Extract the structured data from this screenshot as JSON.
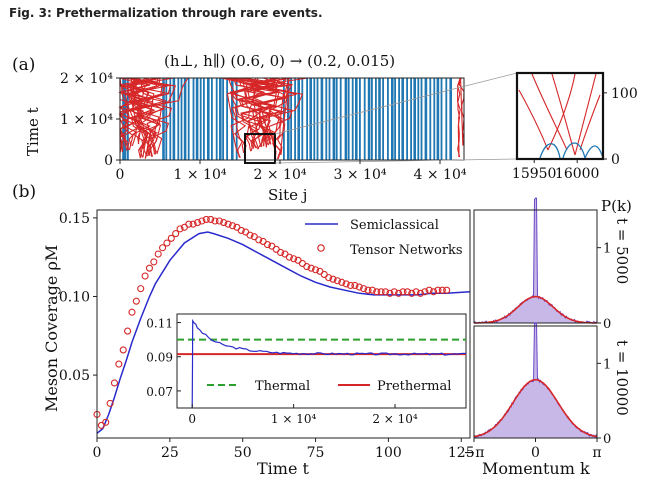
{
  "caption": "Fig. 3: Prethermalization through rare events.",
  "colors": {
    "blue": "#1f77b4",
    "red": "#d62728",
    "line_blue": "#2a2acc",
    "green": "#2ca02c",
    "dist_fill": "#c8b8e8",
    "dist_line": "#6a48c8"
  },
  "chart_data": [
    {
      "type": "heatmap",
      "panel": "(a)",
      "title": "(h⊥, h∥) (0.6, 0) → (0.2, 0.015)",
      "xlabel": "Site j",
      "ylabel": "Time t",
      "xlim": [
        0,
        43000
      ],
      "ylim": [
        0,
        20000
      ],
      "xticks": [
        "0",
        "1 × 10⁴",
        "2 × 10⁴",
        "3 × 10⁴",
        "4 × 10⁴"
      ],
      "yticks": [
        "0",
        "1 × 10⁴",
        "2 × 10⁴"
      ],
      "blue_bar_sites": [
        400,
        700,
        1000,
        5400,
        5800,
        6300,
        6700,
        7300,
        7700,
        8100,
        8600,
        9200,
        9600,
        10100,
        10500,
        11000,
        11500,
        12100,
        12500,
        12900,
        13400,
        14000,
        14600,
        20500,
        21000,
        21400,
        21900,
        22300,
        22800,
        23400,
        23800,
        24300,
        24700,
        25200,
        25800,
        26200,
        26700,
        27100,
        27600,
        28200,
        28600,
        29100,
        29500,
        30000,
        30600,
        31100,
        31500,
        32000,
        32400,
        32900,
        33500,
        34000,
        34400,
        34900,
        35300,
        35900,
        36400,
        36800,
        37300,
        37700,
        38200,
        38800,
        39300,
        39700,
        40200,
        40800,
        41300
      ],
      "red_event_regions": [
        [
          0,
          5200
        ],
        [
          14800,
          20300
        ],
        [
          42300,
          43000
        ]
      ],
      "inset": {
        "xlim": [
          15930,
          16030
        ],
        "ylim": [
          0,
          130
        ],
        "xticks": [
          "15950",
          "16000"
        ],
        "yticks": [
          "0",
          "100"
        ]
      }
    },
    {
      "type": "line",
      "panel": "(b)",
      "xlabel": "Time t",
      "ylabel": "Meson Coverage ρM",
      "xlim": [
        0,
        128
      ],
      "ylim": [
        0.01,
        0.155
      ],
      "xticks": [
        "0",
        "25",
        "50",
        "75",
        "100",
        "125"
      ],
      "yticks": [
        "0.05",
        "0.10",
        "0.15"
      ],
      "legend": [
        "Semiclassical",
        "Tensor Networks"
      ],
      "legend_position": "top-right",
      "series": [
        {
          "name": "Semiclassical",
          "style": "line",
          "x": [
            0,
            2,
            4,
            6,
            8,
            10,
            12,
            15,
            18,
            20,
            25,
            30,
            35,
            38,
            40,
            45,
            50,
            55,
            60,
            65,
            70,
            75,
            80,
            85,
            90,
            95,
            100,
            105,
            110,
            115,
            120,
            128
          ],
          "values": [
            0.013,
            0.016,
            0.025,
            0.036,
            0.048,
            0.059,
            0.071,
            0.086,
            0.1,
            0.108,
            0.123,
            0.134,
            0.14,
            0.141,
            0.14,
            0.137,
            0.133,
            0.128,
            0.123,
            0.118,
            0.113,
            0.109,
            0.106,
            0.104,
            0.102,
            0.101,
            0.101,
            0.101,
            0.101,
            0.102,
            0.102,
            0.103
          ]
        },
        {
          "name": "Tensor Networks",
          "style": "markers",
          "x": [
            0,
            1.5,
            3,
            4.5,
            6,
            7.5,
            9,
            10.5,
            12,
            13.5,
            15,
            16.5,
            18,
            19.5,
            21,
            22.5,
            24,
            25.5,
            27,
            28.5,
            30,
            31.5,
            33,
            34.5,
            36,
            37.5,
            39,
            40.5,
            42,
            43.5,
            45,
            46.5,
            48,
            49.5,
            51,
            52.5,
            54,
            55.5,
            57,
            58.5,
            60,
            61.5,
            63,
            64.5,
            66,
            67.5,
            69,
            70.5,
            72,
            73.5,
            75,
            76.5,
            78,
            79.5,
            81,
            82.5,
            84,
            85.5,
            87,
            88.5,
            90,
            91.5,
            93,
            94.5,
            96,
            97.5,
            99,
            100.5,
            102,
            103.5,
            105,
            106.5,
            108,
            109.5,
            111,
            112.5,
            114,
            115.5,
            117,
            118.5,
            120
          ],
          "values": [
            0.025,
            0.018,
            0.02,
            0.032,
            0.045,
            0.057,
            0.066,
            0.078,
            0.09,
            0.097,
            0.105,
            0.113,
            0.118,
            0.122,
            0.127,
            0.131,
            0.134,
            0.137,
            0.14,
            0.143,
            0.144,
            0.146,
            0.146,
            0.147,
            0.148,
            0.149,
            0.149,
            0.148,
            0.148,
            0.147,
            0.146,
            0.145,
            0.144,
            0.142,
            0.141,
            0.139,
            0.138,
            0.136,
            0.135,
            0.133,
            0.132,
            0.13,
            0.128,
            0.127,
            0.125,
            0.124,
            0.123,
            0.121,
            0.119,
            0.118,
            0.117,
            0.116,
            0.114,
            0.112,
            0.111,
            0.11,
            0.109,
            0.108,
            0.107,
            0.107,
            0.106,
            0.105,
            0.104,
            0.104,
            0.103,
            0.103,
            0.103,
            0.102,
            0.103,
            0.102,
            0.103,
            0.103,
            0.102,
            0.103,
            0.102,
            0.103,
            0.104,
            0.103,
            0.104,
            0.104,
            0.104
          ]
        }
      ],
      "inset": {
        "xlim": [
          -1500,
          27000
        ],
        "ylim": [
          0.06,
          0.115
        ],
        "xticks": [
          "0",
          "1 × 10⁴",
          "2 × 10⁴"
        ],
        "yticks": [
          "0.07",
          "0.09",
          "0.11"
        ],
        "legend": [
          "Thermal",
          "Prethermal"
        ],
        "thermal": 0.1,
        "prethermal": 0.0915,
        "curve_x": [
          0,
          50,
          200,
          500,
          1000,
          2000,
          3000,
          4000,
          5000,
          6000,
          7000,
          8000,
          9000,
          10000,
          12000,
          15000,
          18000,
          21000,
          24000,
          27000
        ],
        "curve_y": [
          0.06,
          0.111,
          0.11,
          0.107,
          0.104,
          0.0995,
          0.097,
          0.0955,
          0.0945,
          0.0935,
          0.093,
          0.0925,
          0.0922,
          0.092,
          0.0918,
          0.0917,
          0.0916,
          0.0916,
          0.0915,
          0.0915
        ]
      }
    },
    {
      "type": "area",
      "panel": "distributions",
      "xlabel": "Momentum k",
      "ylabel": "P(k)",
      "xticks": [
        "−π",
        "0",
        "π"
      ],
      "yticks": [
        "0",
        "1"
      ],
      "panels": [
        {
          "label": "t = 5000",
          "peak": 1.3,
          "base": 0.35,
          "width": 0.9
        },
        {
          "label": "t = 10000",
          "peak": 0.75,
          "base": 0.78,
          "width": 1.15
        }
      ]
    }
  ]
}
